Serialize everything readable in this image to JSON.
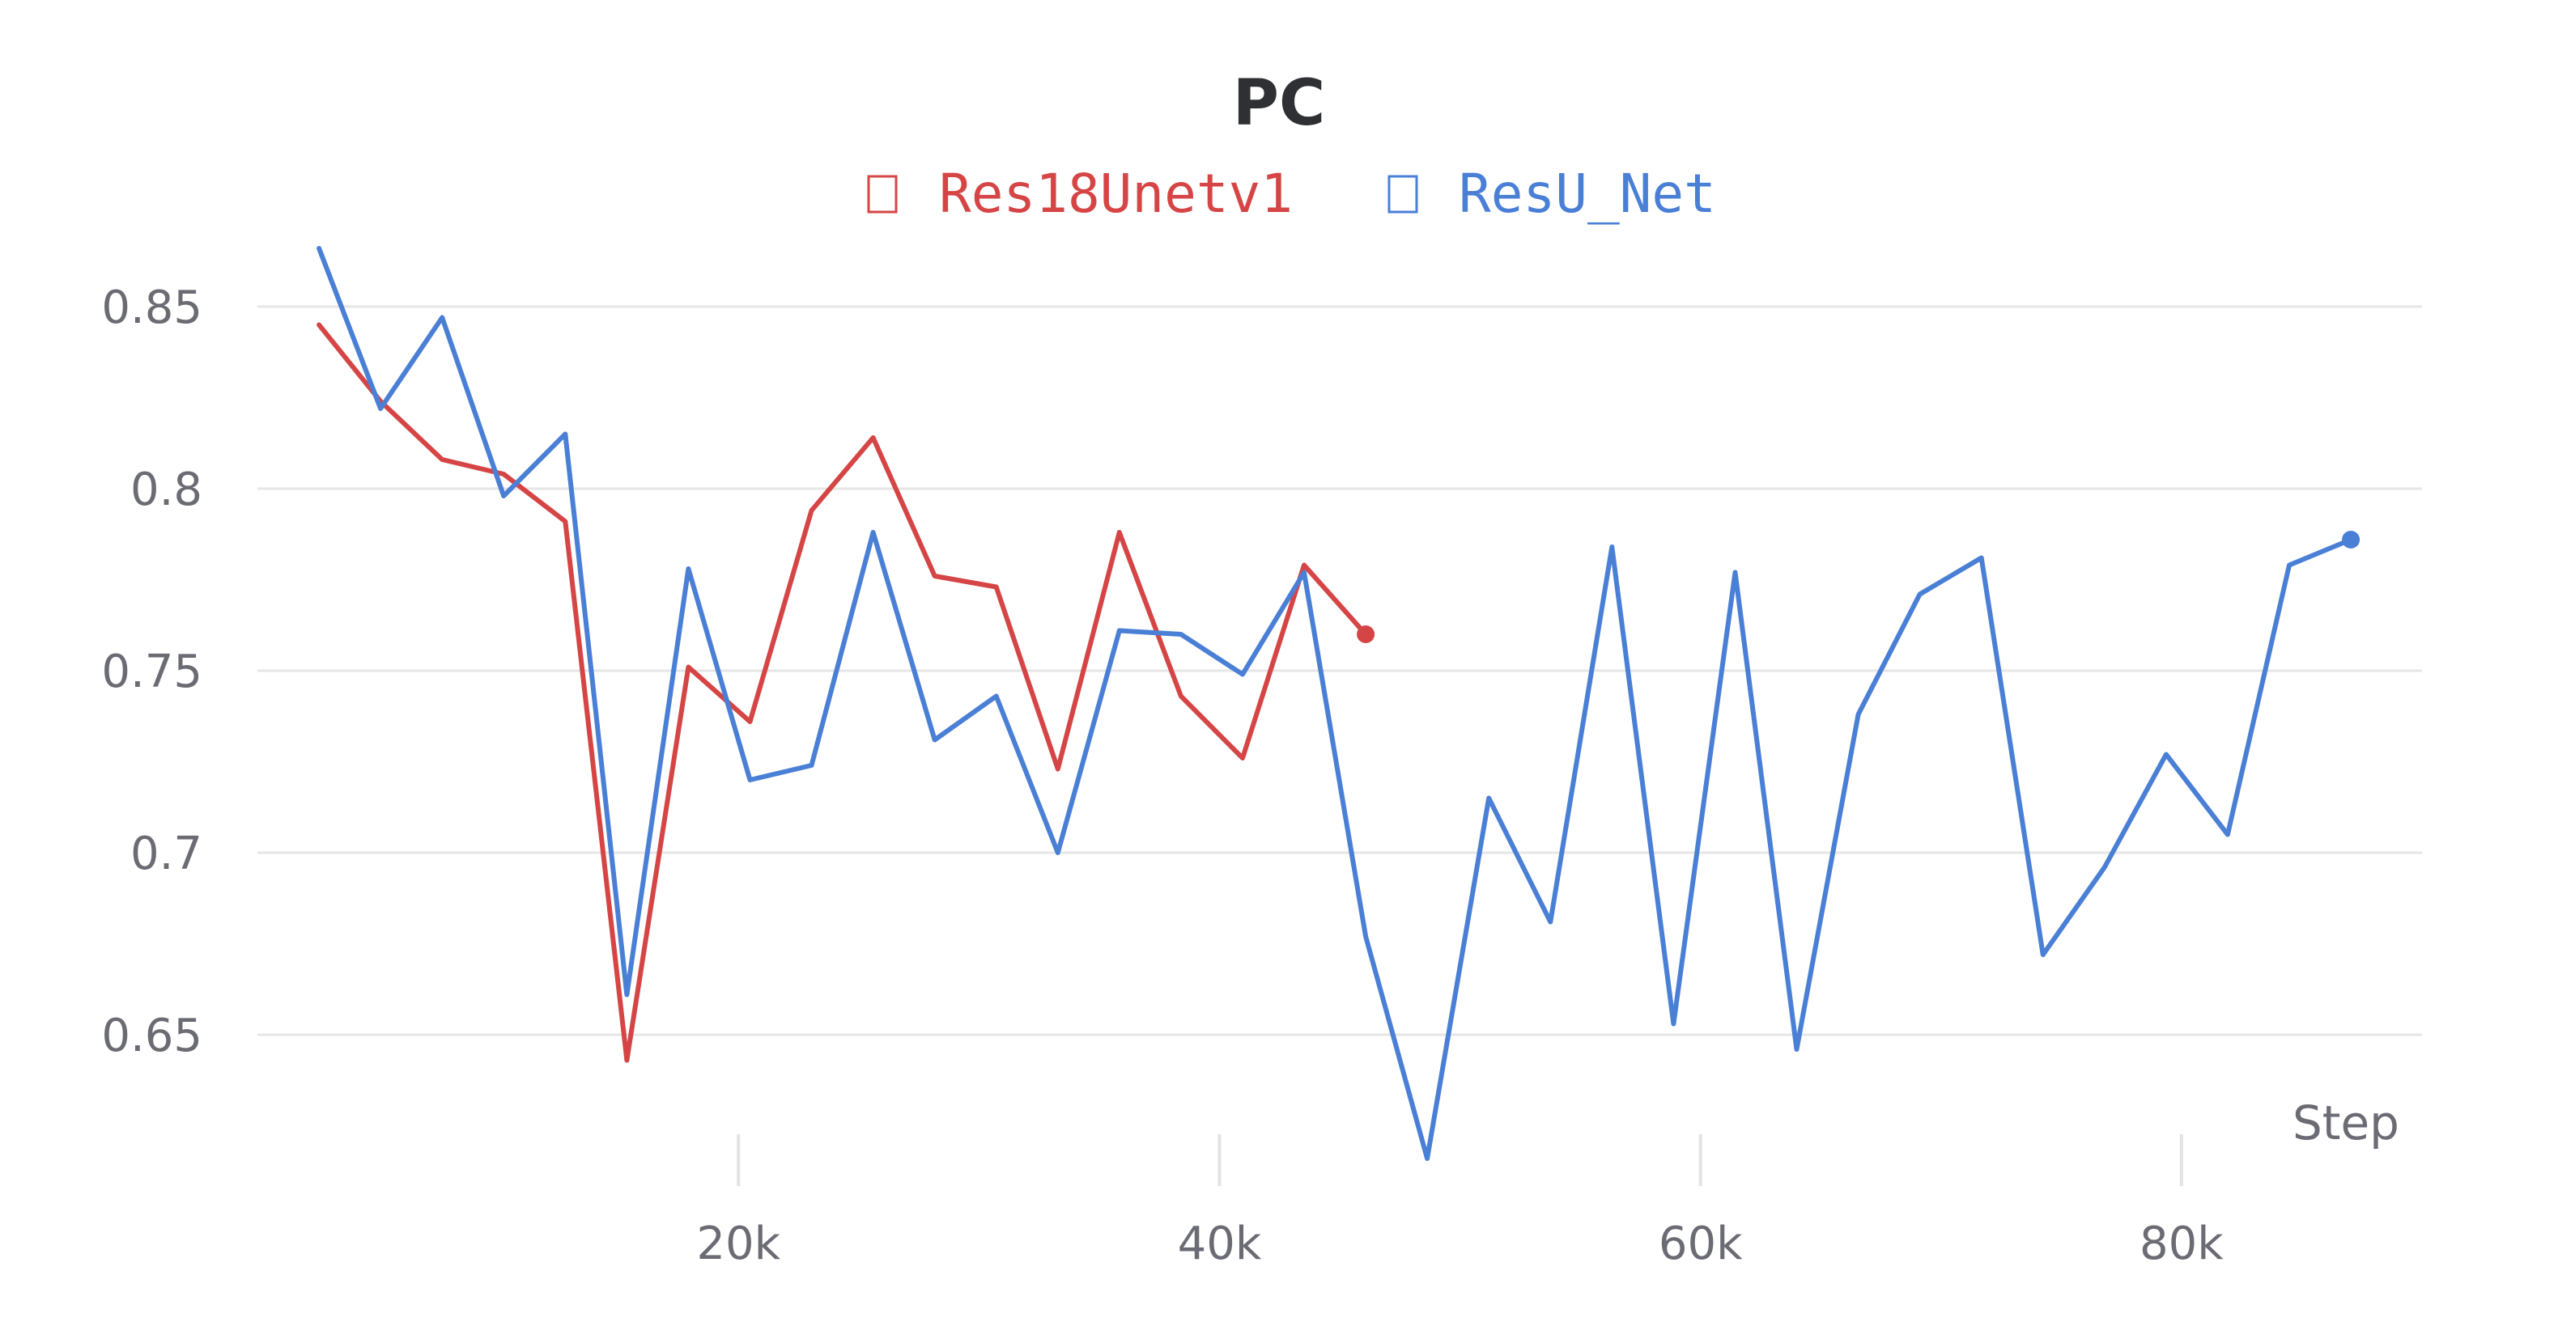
{
  "chart_data": {
    "type": "line",
    "title": "PC",
    "xlabel": "Step",
    "ylabel": "",
    "xlim": [
      0,
      90000
    ],
    "ylim": [
      0.612,
      0.872
    ],
    "x_ticks": [
      20000,
      40000,
      60000,
      80000
    ],
    "x_tick_labels": [
      "20k",
      "40k",
      "60k",
      "80k"
    ],
    "y_ticks": [
      0.65,
      0.7,
      0.75,
      0.8,
      0.85
    ],
    "y_tick_labels": [
      "0.65",
      "0.7",
      "0.75",
      "0.8",
      "0.85"
    ],
    "grid": true,
    "legend_position": "top-center",
    "series": [
      {
        "name": "Res18Unetv1",
        "color": "#d64545",
        "x": [
          2560,
          5120,
          7680,
          10240,
          12800,
          15360,
          17920,
          20480,
          23040,
          25600,
          28160,
          30720,
          33280,
          35840,
          38400,
          40960,
          43520,
          46080
        ],
        "y": [
          0.845,
          0.824,
          0.808,
          0.804,
          0.791,
          0.643,
          0.751,
          0.736,
          0.794,
          0.814,
          0.776,
          0.773,
          0.723,
          0.788,
          0.743,
          0.726,
          0.779,
          0.76
        ]
      },
      {
        "name": "ResU_Net",
        "color": "#4a7fd6",
        "x": [
          2560,
          5120,
          7680,
          10240,
          12800,
          15360,
          17920,
          20480,
          23040,
          25600,
          28160,
          30720,
          33280,
          35840,
          38400,
          40960,
          43520,
          46080,
          48640,
          51200,
          53760,
          56320,
          58880,
          61440,
          64000,
          66560,
          69120,
          71680,
          74240,
          76800,
          79360,
          81920,
          84480,
          87040
        ],
        "y": [
          0.866,
          0.822,
          0.847,
          0.798,
          0.815,
          0.661,
          0.778,
          0.72,
          0.724,
          0.788,
          0.731,
          0.743,
          0.7,
          0.761,
          0.76,
          0.749,
          0.777,
          0.677,
          0.616,
          0.715,
          0.681,
          0.784,
          0.653,
          0.777,
          0.646,
          0.738,
          0.771,
          0.781,
          0.672,
          0.696,
          0.727,
          0.705,
          0.779,
          0.786
        ]
      }
    ]
  }
}
